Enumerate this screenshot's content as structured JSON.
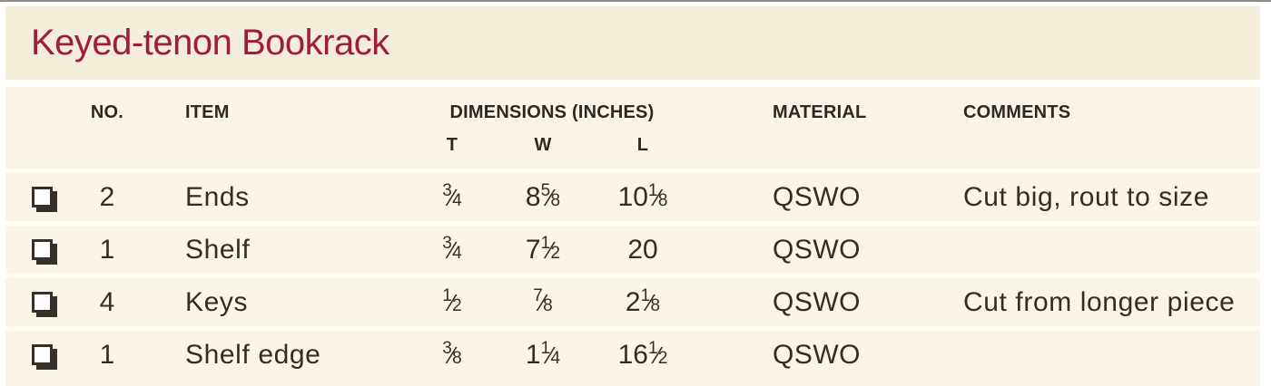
{
  "title": "Keyed-tenon Bookrack",
  "colors": {
    "title_accent": "#a01c3c",
    "band_background": "#f4edd9",
    "table_background": "#faf5e8",
    "row_separator": "#fffdf4",
    "text": "#332d26",
    "top_rule": "#8e8c83"
  },
  "table": {
    "headers": {
      "no": "NO.",
      "item": "ITEM",
      "dimensions": "DIMENSIONS (INCHES)",
      "t": "T",
      "w": "W",
      "l": "L",
      "material": "MATERIAL",
      "comments": "COMMENTS"
    },
    "rows": [
      {
        "checkbox": "unchecked",
        "no": "2",
        "item": "Ends",
        "t": "3/4",
        "w": "8 5/8",
        "l": "10 1/8",
        "material": "QSWO",
        "comments": "Cut big, rout to size"
      },
      {
        "checkbox": "unchecked",
        "no": "1",
        "item": "Shelf",
        "t": "3/4",
        "w": "7 1/2",
        "l": "20",
        "material": "QSWO",
        "comments": ""
      },
      {
        "checkbox": "unchecked",
        "no": "4",
        "item": "Keys",
        "t": "1/2",
        "w": "7/8",
        "l": "2 1/8",
        "material": "QSWO",
        "comments": "Cut from longer piece"
      },
      {
        "checkbox": "unchecked",
        "no": "1",
        "item": "Shelf edge",
        "t": "3/8",
        "w": "1 1/4",
        "l": "16 1/2",
        "material": "QSWO",
        "comments": ""
      }
    ]
  }
}
